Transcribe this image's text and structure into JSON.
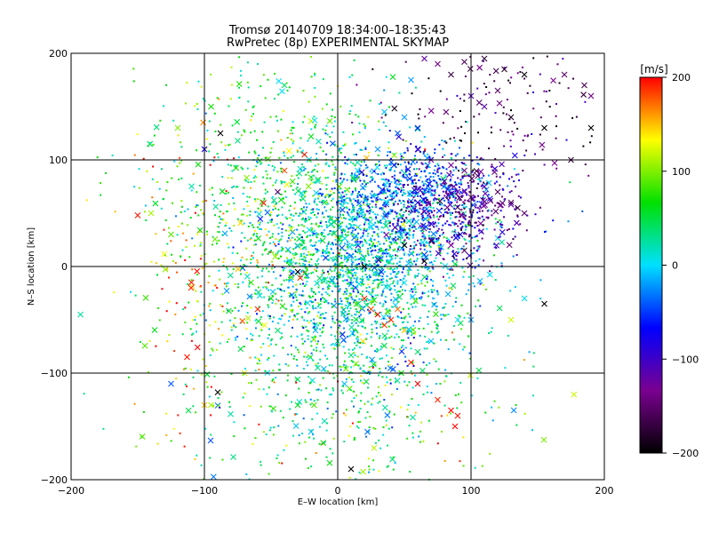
{
  "chart_data": {
    "type": "scatter",
    "title": "Tromsø 20140709 18:34:00–18:35:43",
    "subtitle": "RwPretec (8p) EXPERIMENTAL SKYMAP",
    "xlabel": "E–W location [km]",
    "ylabel": "N–S location [km]",
    "xlim": [
      -200,
      200
    ],
    "ylim": [
      -200,
      200
    ],
    "xticks": [
      -200,
      -100,
      0,
      100,
      200
    ],
    "yticks": [
      -200,
      -100,
      0,
      100,
      200
    ],
    "xtick_labels": [
      "−200",
      "−100",
      "0",
      "100",
      "200"
    ],
    "ytick_labels": [
      "−200",
      "−100",
      "0",
      "100",
      "200"
    ],
    "grid": true,
    "colorbar": {
      "label": "[m/s]",
      "range": [
        -200,
        200
      ],
      "ticks": [
        200,
        100,
        0,
        -100,
        -200
      ],
      "tick_labels": [
        "200",
        "100",
        "0",
        "−100",
        "−200"
      ],
      "colors": [
        "#000000",
        "#7a0090",
        "#0000ff",
        "#00e0ff",
        "#00e000",
        "#ffff00",
        "#ff0000"
      ]
    },
    "markers": {
      "small": "dot",
      "large": "x"
    },
    "points": [
      [
        -88,
        125,
        -220,
        "x"
      ],
      [
        -20,
        122,
        60,
        "x"
      ],
      [
        -60,
        190,
        20,
        "dot"
      ],
      [
        -40,
        170,
        40,
        "x"
      ],
      [
        -120,
        130,
        100,
        "x"
      ],
      [
        -95,
        150,
        70,
        "x"
      ],
      [
        -100,
        110,
        -80,
        "x"
      ],
      [
        -75,
        118,
        35,
        "x"
      ],
      [
        -150,
        48,
        195,
        "x"
      ],
      [
        -140,
        50,
        110,
        "x"
      ],
      [
        -125,
        30,
        90,
        "x"
      ],
      [
        -110,
        -20,
        190,
        "x"
      ],
      [
        -125,
        -110,
        -40,
        "x"
      ],
      [
        -113,
        -85,
        195,
        "x"
      ],
      [
        -100,
        -130,
        150,
        "x"
      ],
      [
        -95,
        -130,
        110,
        "x"
      ],
      [
        -90,
        -118,
        -200,
        "x"
      ],
      [
        -70,
        -100,
        120,
        "x"
      ],
      [
        -45,
        70,
        -150,
        "x"
      ],
      [
        -40,
        90,
        180,
        "x"
      ],
      [
        -35,
        35,
        120,
        "x"
      ],
      [
        -30,
        -5,
        -200,
        "x"
      ],
      [
        -25,
        105,
        190,
        "x"
      ],
      [
        -15,
        -95,
        30,
        "x"
      ],
      [
        -60,
        -40,
        190,
        "x"
      ],
      [
        -55,
        -55,
        130,
        "x"
      ],
      [
        -45,
        -60,
        40,
        "x"
      ],
      [
        20,
        -30,
        190,
        "x"
      ],
      [
        25,
        -40,
        180,
        "x"
      ],
      [
        30,
        -45,
        200,
        "x"
      ],
      [
        35,
        -55,
        185,
        "x"
      ],
      [
        40,
        -50,
        190,
        "x"
      ],
      [
        45,
        -40,
        170,
        "x"
      ],
      [
        50,
        -60,
        150,
        "x"
      ],
      [
        55,
        -90,
        190,
        "x"
      ],
      [
        60,
        -110,
        200,
        "x"
      ],
      [
        75,
        -125,
        190,
        "x"
      ],
      [
        85,
        -135,
        200,
        "x"
      ],
      [
        90,
        -140,
        195,
        "x"
      ],
      [
        88,
        -150,
        200,
        "x"
      ],
      [
        10,
        -190,
        -200,
        "x"
      ],
      [
        -20,
        -155,
        -10,
        "x"
      ],
      [
        -10,
        -145,
        20,
        "x"
      ],
      [
        60,
        -80,
        40,
        "x"
      ],
      [
        70,
        -70,
        -10,
        "x"
      ],
      [
        90,
        -50,
        0,
        "x"
      ],
      [
        100,
        -50,
        -20,
        "x"
      ],
      [
        130,
        -50,
        120,
        "x"
      ],
      [
        140,
        -30,
        5,
        "x"
      ],
      [
        155,
        -35,
        -210,
        "x"
      ],
      [
        50,
        140,
        -20,
        "x"
      ],
      [
        35,
        145,
        -10,
        "x"
      ],
      [
        60,
        130,
        -60,
        "x"
      ],
      [
        75,
        190,
        -140,
        "x"
      ],
      [
        85,
        180,
        -170,
        "x"
      ],
      [
        95,
        192,
        -160,
        "x"
      ],
      [
        110,
        195,
        -175,
        "x"
      ],
      [
        125,
        185,
        -180,
        "x"
      ],
      [
        140,
        180,
        -200,
        "x"
      ],
      [
        155,
        130,
        -220,
        "x"
      ],
      [
        170,
        180,
        -150,
        "x"
      ],
      [
        185,
        170,
        -160,
        "x"
      ],
      [
        190,
        160,
        -140,
        "x"
      ],
      [
        190,
        130,
        -220,
        "x"
      ],
      [
        120,
        165,
        -150,
        "x"
      ],
      [
        100,
        160,
        -110,
        "x"
      ],
      [
        110,
        150,
        -115,
        "x"
      ],
      [
        60,
        110,
        -100,
        "x"
      ],
      [
        70,
        100,
        -120,
        "x"
      ],
      [
        85,
        95,
        -130,
        "x"
      ],
      [
        95,
        90,
        -140,
        "x"
      ],
      [
        105,
        85,
        -150,
        "x"
      ],
      [
        80,
        80,
        -110,
        "x"
      ],
      [
        90,
        70,
        -120,
        "x"
      ],
      [
        100,
        65,
        -140,
        "x"
      ],
      [
        110,
        75,
        -120,
        "x"
      ],
      [
        120,
        70,
        -155,
        "x"
      ],
      [
        130,
        60,
        -160,
        "x"
      ],
      [
        135,
        55,
        -170,
        "x"
      ],
      [
        140,
        50,
        -150,
        "x"
      ],
      [
        60,
        60,
        -80,
        "x"
      ],
      [
        70,
        40,
        -90,
        "x"
      ],
      [
        85,
        20,
        -130,
        "x"
      ],
      [
        95,
        15,
        -150,
        "x"
      ],
      [
        50,
        20,
        -200,
        "x"
      ],
      [
        65,
        5,
        -210,
        "x"
      ],
      [
        20,
        0,
        -210,
        "x"
      ],
      [
        10,
        10,
        -30,
        "x"
      ],
      [
        -5,
        40,
        20,
        "x"
      ],
      [
        -10,
        60,
        50,
        "x"
      ],
      [
        -15,
        80,
        10,
        "x"
      ],
      [
        15,
        90,
        0,
        "x"
      ],
      [
        30,
        110,
        -20,
        "x"
      ],
      [
        45,
        125,
        -40,
        "x"
      ],
      [
        -35,
        -10,
        100,
        "x"
      ],
      [
        -50,
        -30,
        60,
        "x"
      ],
      [
        -65,
        -15,
        80,
        "x"
      ],
      [
        0,
        -70,
        30,
        "x"
      ],
      [
        5,
        -110,
        -10,
        "x"
      ],
      [
        -30,
        -130,
        60,
        "x"
      ],
      [
        55,
        175,
        -20,
        "x"
      ],
      [
        65,
        195,
        -120,
        "x"
      ],
      [
        130,
        140,
        -180,
        "x"
      ],
      [
        175,
        100,
        -170,
        "x"
      ]
    ],
    "density_clusters": [
      {
        "cx": 20,
        "cy": 10,
        "sx": 40,
        "sy": 40,
        "n": 1300,
        "vmean": 0,
        "vsd": 35
      },
      {
        "cx": 10,
        "cy": -40,
        "sx": 45,
        "sy": 60,
        "n": 900,
        "vmean": 30,
        "vsd": 45
      },
      {
        "cx": -40,
        "cy": 40,
        "sx": 45,
        "sy": 50,
        "n": 500,
        "vmean": 60,
        "vsd": 40
      },
      {
        "cx": 55,
        "cy": 70,
        "sx": 30,
        "sy": 20,
        "n": 550,
        "vmean": -40,
        "vsd": 30
      },
      {
        "cx": 90,
        "cy": 50,
        "sx": 25,
        "sy": 25,
        "n": 450,
        "vmean": -120,
        "vsd": 30
      },
      {
        "cx": 120,
        "cy": 150,
        "sx": 50,
        "sy": 30,
        "n": 150,
        "vmean": -160,
        "vsd": 40
      },
      {
        "cx": -100,
        "cy": 0,
        "sx": 30,
        "sy": 70,
        "n": 200,
        "vmean": 130,
        "vsd": 50
      },
      {
        "cx": 0,
        "cy": -140,
        "sx": 70,
        "sy": 40,
        "n": 250,
        "vmean": 60,
        "vsd": 60
      },
      {
        "cx": -40,
        "cy": 120,
        "sx": 50,
        "sy": 45,
        "n": 250,
        "vmean": 50,
        "vsd": 40
      }
    ]
  }
}
